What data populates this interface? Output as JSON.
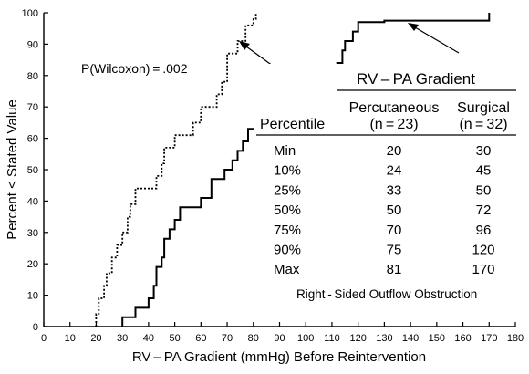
{
  "chart_data": {
    "type": "line",
    "title": "",
    "xlabel": "RV – PA Gradient (mmHg) Before Reintervention",
    "ylabel": "Percent < Stated Value",
    "xlim": [
      0,
      180
    ],
    "ylim": [
      0,
      100
    ],
    "x_ticks": [
      "0",
      "10",
      "20",
      "30",
      "40",
      "50",
      "60",
      "70",
      "80",
      "90",
      "100",
      "110",
      "120",
      "130",
      "140",
      "150",
      "160",
      "170",
      "180"
    ],
    "y_ticks": [
      "0",
      "10",
      "20",
      "30",
      "40",
      "50",
      "60",
      "70",
      "80",
      "90",
      "100"
    ],
    "grid": false,
    "series": [
      {
        "style": "dotted",
        "points": [
          [
            20,
            0
          ],
          [
            20,
            4
          ],
          [
            21,
            4
          ],
          [
            21,
            9
          ],
          [
            23,
            9
          ],
          [
            23,
            13
          ],
          [
            24,
            13
          ],
          [
            24,
            17
          ],
          [
            26,
            17
          ],
          [
            26,
            22
          ],
          [
            28,
            22
          ],
          [
            28,
            26
          ],
          [
            30,
            26
          ],
          [
            30,
            30
          ],
          [
            32,
            30
          ],
          [
            32,
            35
          ],
          [
            33,
            35
          ],
          [
            33,
            39
          ],
          [
            35,
            39
          ],
          [
            35,
            44
          ],
          [
            43,
            44
          ],
          [
            43,
            48
          ],
          [
            45,
            48
          ],
          [
            45,
            52
          ],
          [
            46,
            52
          ],
          [
            46,
            57
          ],
          [
            50,
            57
          ],
          [
            50,
            61
          ],
          [
            57,
            61
          ],
          [
            57,
            65
          ],
          [
            60,
            65
          ],
          [
            60,
            70
          ],
          [
            66,
            70
          ],
          [
            66,
            74
          ],
          [
            68,
            74
          ],
          [
            68,
            78
          ],
          [
            70,
            78
          ],
          [
            70,
            87
          ],
          [
            74,
            87
          ],
          [
            74,
            91
          ],
          [
            77,
            91
          ],
          [
            77,
            96
          ],
          [
            80,
            96
          ],
          [
            80,
            98
          ],
          [
            81,
            98
          ],
          [
            81,
            100
          ]
        ]
      },
      {
        "style": "solid",
        "points": [
          [
            30,
            0
          ],
          [
            30,
            3
          ],
          [
            35,
            3
          ],
          [
            35,
            6
          ],
          [
            40,
            6
          ],
          [
            40,
            9
          ],
          [
            42,
            9
          ],
          [
            42,
            13
          ],
          [
            43,
            13
          ],
          [
            43,
            19
          ],
          [
            45,
            19
          ],
          [
            45,
            22
          ],
          [
            46,
            22
          ],
          [
            46,
            28
          ],
          [
            48,
            28
          ],
          [
            48,
            31
          ],
          [
            50,
            31
          ],
          [
            50,
            34
          ],
          [
            52,
            34
          ],
          [
            52,
            38
          ],
          [
            60,
            38
          ],
          [
            60,
            41
          ],
          [
            64,
            41
          ],
          [
            64,
            47
          ],
          [
            69,
            47
          ],
          [
            69,
            50
          ],
          [
            72,
            50
          ],
          [
            72,
            53
          ],
          [
            74,
            53
          ],
          [
            74,
            56
          ],
          [
            76,
            56
          ],
          [
            76,
            59
          ],
          [
            78,
            59
          ],
          [
            78,
            63
          ],
          [
            82,
            63
          ],
          [
            82,
            66
          ],
          [
            84,
            66
          ],
          [
            84,
            69
          ],
          [
            87,
            69
          ],
          [
            87,
            72
          ],
          [
            90,
            72
          ],
          [
            90,
            75
          ],
          [
            96,
            75
          ],
          [
            96,
            78
          ],
          [
            98,
            78
          ],
          [
            98,
            81
          ],
          [
            112,
            81
          ],
          [
            112,
            84
          ],
          [
            114,
            84
          ],
          [
            114,
            88
          ],
          [
            115,
            88
          ],
          [
            115,
            91
          ],
          [
            118,
            91
          ],
          [
            118,
            94
          ],
          [
            120,
            94
          ],
          [
            120,
            97
          ],
          [
            130,
            97
          ],
          [
            130,
            97.5
          ],
          [
            170,
            97.5
          ],
          [
            170,
            100
          ]
        ]
      }
    ],
    "annotations": {
      "p_value": "P(Wilcoxon) = .002",
      "footer": "Right - Sided Outflow Obstruction"
    },
    "table": {
      "title": "RV – PA Gradient",
      "row_header": "Percentile",
      "col1_name": "Percutaneous",
      "col1_n": "(n = 23)",
      "col2_name": "Surgical",
      "col2_n": "(n = 32)",
      "rows": [
        [
          "Min",
          "20",
          "30"
        ],
        [
          "10%",
          "24",
          "45"
        ],
        [
          "25%",
          "33",
          "50"
        ],
        [
          "50%",
          "50",
          "72"
        ],
        [
          "75%",
          "70",
          "96"
        ],
        [
          "90%",
          "75",
          "120"
        ],
        [
          "Max",
          "81",
          "170"
        ]
      ]
    }
  }
}
